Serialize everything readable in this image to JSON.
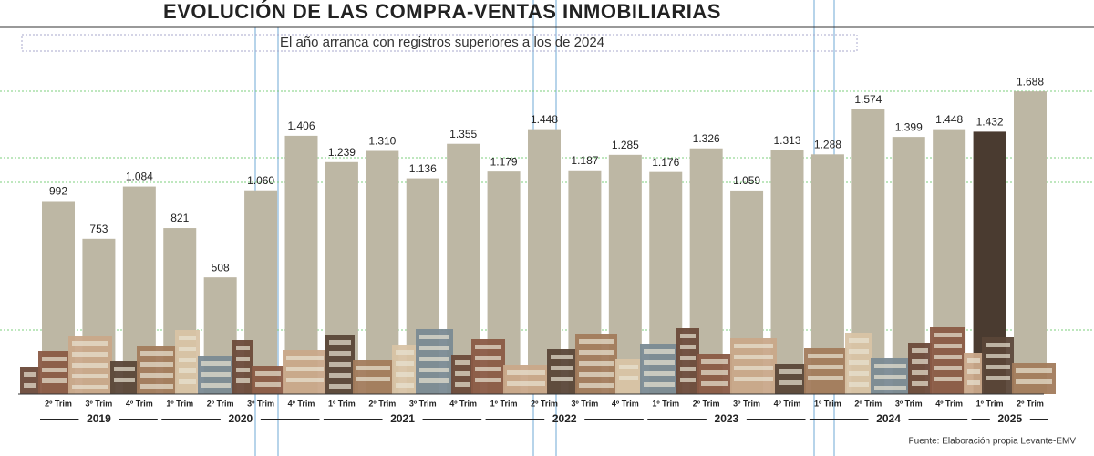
{
  "chart_data": {
    "type": "bar",
    "title": "EVOLUCIÓN DE LAS COMPRA-VENTAS INMOBILIARIAS",
    "subtitle": "El año arranca con registros superiores a los de 2024",
    "source": "Fuente: Elaboración propia Levante-EMV",
    "color": "#bdb7a4",
    "groups": [
      {
        "name": "2019",
        "categories": [
          "2º Trim",
          "3º Trim",
          "4º Trim"
        ],
        "values": [
          992,
          753,
          1084
        ],
        "value_labels": [
          "992",
          "753",
          "1.084"
        ]
      },
      {
        "name": "2020",
        "categories": [
          "1º Trim",
          "2º Trim",
          "3º Trim",
          "4º Trim"
        ],
        "values": [
          821,
          508,
          1060,
          1406
        ],
        "value_labels": [
          "821",
          "508",
          "1.060",
          "1.406"
        ]
      },
      {
        "name": "2021",
        "categories": [
          "1º Trim",
          "2º Trim",
          "3º Trim",
          "4º Trim"
        ],
        "values": [
          1239,
          1310,
          1136,
          1355
        ],
        "value_labels": [
          "1.239",
          "1.310",
          "1.136",
          "1.355"
        ]
      },
      {
        "name": "2022",
        "categories": [
          "1º Trim",
          "2º Trim",
          "3º Trim",
          "4º Trim"
        ],
        "values": [
          1179,
          1448,
          1187,
          1285
        ],
        "value_labels": [
          "1.179",
          "1.448",
          "1.187",
          "1.285"
        ]
      },
      {
        "name": "2023",
        "categories": [
          "1º Trim",
          "2º Trim",
          "3º Trim",
          "4º Trim"
        ],
        "values": [
          1176,
          1326,
          1059,
          1313
        ],
        "value_labels": [
          "1.176",
          "1.326",
          "1.059",
          "1.313"
        ]
      },
      {
        "name": "2024",
        "categories": [
          "1º Trim",
          "2º Trim",
          "3º Trim",
          "4º Trim"
        ],
        "values": [
          1288,
          1574,
          1399,
          1448
        ],
        "value_labels": [
          "1.288",
          "1.574",
          "1.399",
          "1.448"
        ]
      },
      {
        "name": "2025",
        "categories": [
          "1º Trim",
          "2º Trim"
        ],
        "values": [
          1432,
          1688
        ],
        "value_labels": [
          "1.432",
          "1.688"
        ],
        "colors": [
          "#4a3b30",
          "#bdb7a4"
        ]
      }
    ]
  }
}
